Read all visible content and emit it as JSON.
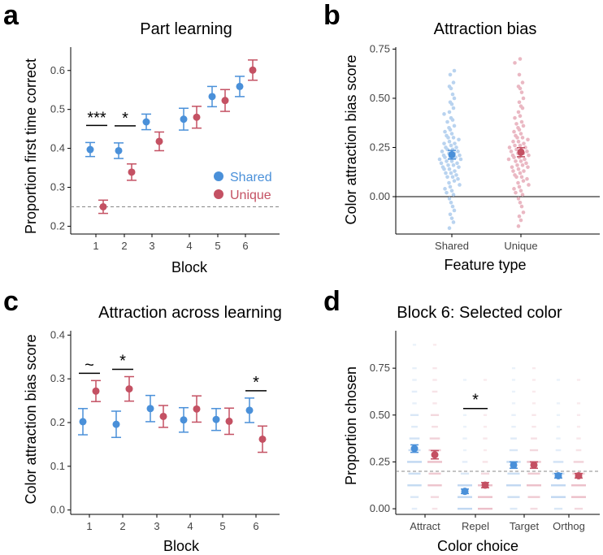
{
  "colors": {
    "shared": "#4a90d9",
    "unique": "#c45163",
    "shared_light": "#b9d3ef",
    "unique_light": "#eab8c3"
  },
  "panels": {
    "a": {
      "letter": "a",
      "title": "Part learning"
    },
    "b": {
      "letter": "b",
      "title": "Attraction bias"
    },
    "c": {
      "letter": "c",
      "title": "Attraction across learning"
    },
    "d": {
      "letter": "d",
      "title": "Block 6: Selected color"
    }
  },
  "legend": {
    "shared": "Shared",
    "unique": "Unique"
  },
  "chart_data": [
    {
      "id": "a",
      "type": "scatter",
      "title": "Part learning",
      "xlabel": "Block",
      "ylabel": "Proportion first time correct",
      "categories": [
        "1",
        "2",
        "3",
        "4",
        "5",
        "6"
      ],
      "ylim": [
        0.18,
        0.66
      ],
      "yticks": [
        0.2,
        0.3,
        0.4,
        0.5,
        0.6
      ],
      "ytick_labels": [
        "0.2",
        "0.3",
        "0.4",
        "0.5",
        "0.6"
      ],
      "reference_line": 0.25,
      "series": [
        {
          "name": "Shared",
          "values": [
            0.397,
            0.394,
            0.468,
            0.475,
            0.533,
            0.559
          ],
          "errors": [
            0.018,
            0.02,
            0.02,
            0.028,
            0.026,
            0.026
          ]
        },
        {
          "name": "Unique",
          "values": [
            0.25,
            0.339,
            0.418,
            0.48,
            0.523,
            0.601
          ],
          "errors": [
            0.017,
            0.021,
            0.024,
            0.028,
            0.028,
            0.026
          ]
        }
      ],
      "significance": [
        {
          "block": "1",
          "label": "***"
        },
        {
          "block": "2",
          "label": "*"
        }
      ],
      "legend_position": "right"
    },
    {
      "id": "b",
      "type": "scatter",
      "title": "Attraction bias",
      "xlabel": "Feature type",
      "ylabel": "Color attraction bias score",
      "categories": [
        "Shared",
        "Unique"
      ],
      "ylim": [
        -0.19,
        0.76
      ],
      "yticks": [
        0,
        0.25,
        0.5,
        0.75
      ],
      "ytick_labels": [
        "0.00",
        "0.25",
        "0.50",
        "0.75"
      ],
      "reference_line": 0,
      "series": [
        {
          "name": "Shared",
          "values": [
            0.213
          ],
          "errors": [
            0.022
          ]
        },
        {
          "name": "Unique",
          "values": [
            0.226
          ],
          "errors": [
            0.023
          ]
        }
      ],
      "individual_points": {
        "Shared": [
          0.64,
          0.62,
          0.58,
          0.56,
          0.55,
          0.52,
          0.5,
          0.48,
          0.47,
          0.45,
          0.43,
          0.42,
          0.4,
          0.39,
          0.38,
          0.36,
          0.35,
          0.34,
          0.33,
          0.32,
          0.31,
          0.3,
          0.3,
          0.29,
          0.28,
          0.27,
          0.27,
          0.26,
          0.25,
          0.25,
          0.24,
          0.24,
          0.23,
          0.23,
          0.22,
          0.22,
          0.21,
          0.21,
          0.2,
          0.2,
          0.2,
          0.19,
          0.19,
          0.18,
          0.18,
          0.17,
          0.17,
          0.16,
          0.16,
          0.15,
          0.15,
          0.14,
          0.14,
          0.13,
          0.12,
          0.12,
          0.11,
          0.1,
          0.1,
          0.09,
          0.08,
          0.07,
          0.06,
          0.05,
          0.04,
          0.03,
          0.02,
          0.01,
          -0.01,
          -0.03,
          -0.05,
          -0.07,
          -0.09,
          -0.11,
          -0.13,
          -0.16
        ],
        "Unique": [
          0.7,
          0.68,
          0.62,
          0.58,
          0.56,
          0.55,
          0.53,
          0.5,
          0.48,
          0.46,
          0.45,
          0.43,
          0.41,
          0.4,
          0.38,
          0.37,
          0.36,
          0.35,
          0.34,
          0.33,
          0.32,
          0.31,
          0.3,
          0.3,
          0.29,
          0.28,
          0.28,
          0.27,
          0.26,
          0.26,
          0.25,
          0.25,
          0.24,
          0.24,
          0.23,
          0.23,
          0.22,
          0.22,
          0.21,
          0.21,
          0.2,
          0.2,
          0.19,
          0.19,
          0.18,
          0.18,
          0.17,
          0.16,
          0.16,
          0.15,
          0.15,
          0.14,
          0.13,
          0.13,
          0.12,
          0.11,
          0.1,
          0.1,
          0.09,
          0.08,
          0.07,
          0.06,
          0.05,
          0.04,
          0.03,
          0.02,
          0.01,
          -0.01,
          -0.03,
          -0.05,
          -0.08,
          -0.1,
          -0.12,
          -0.15
        ]
      }
    },
    {
      "id": "c",
      "type": "scatter",
      "title": "Attraction across learning",
      "xlabel": "Block",
      "ylabel": "Color attraction bias score",
      "categories": [
        "1",
        "2",
        "3",
        "4",
        "5",
        "6"
      ],
      "ylim": [
        -0.01,
        0.41
      ],
      "yticks": [
        0,
        0.1,
        0.2,
        0.3,
        0.4
      ],
      "ytick_labels": [
        "0.0",
        "0.1",
        "0.2",
        "0.3",
        "0.4"
      ],
      "series": [
        {
          "name": "Shared",
          "values": [
            0.202,
            0.196,
            0.232,
            0.206,
            0.207,
            0.228
          ],
          "errors": [
            0.03,
            0.03,
            0.03,
            0.028,
            0.025,
            0.028
          ]
        },
        {
          "name": "Unique",
          "values": [
            0.272,
            0.277,
            0.214,
            0.231,
            0.203,
            0.162
          ],
          "errors": [
            0.024,
            0.028,
            0.025,
            0.03,
            0.03,
            0.03
          ]
        }
      ],
      "significance": [
        {
          "block": "1",
          "label": "~"
        },
        {
          "block": "2",
          "label": "*"
        },
        {
          "block": "6",
          "label": "*"
        }
      ]
    },
    {
      "id": "d",
      "type": "scatter",
      "title": "Block 6: Selected color",
      "xlabel": "Color choice",
      "ylabel": "Proportion chosen",
      "categories": [
        "Attract",
        "Repel",
        "Target",
        "Orthog"
      ],
      "ylim": [
        -0.03,
        0.95
      ],
      "yticks": [
        0,
        0.25,
        0.5,
        0.75
      ],
      "ytick_labels": [
        "0.00",
        "0.25",
        "0.50",
        "0.75"
      ],
      "reference_line": 0.2,
      "series": [
        {
          "name": "Shared",
          "values": [
            0.321,
            0.093,
            0.233,
            0.176
          ],
          "errors": [
            0.02,
            0.012,
            0.017,
            0.012
          ]
        },
        {
          "name": "Unique",
          "values": [
            0.288,
            0.126,
            0.233,
            0.176
          ],
          "errors": [
            0.022,
            0.014,
            0.017,
            0.012
          ]
        }
      ],
      "significance": [
        {
          "category": "Repel",
          "label": "*"
        }
      ],
      "raw_levels": [
        0,
        0.0625,
        0.125,
        0.1875,
        0.25,
        0.3125,
        0.375,
        0.4375,
        0.5,
        0.5625,
        0.625,
        0.6875,
        0.75,
        0.875
      ]
    }
  ]
}
